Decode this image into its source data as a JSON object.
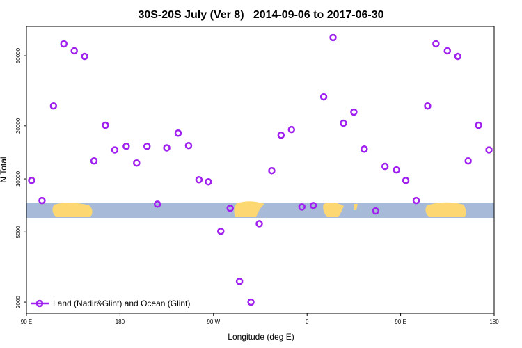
{
  "chart_data": {
    "type": "scatter",
    "title": "30S-20S July (Ver 8)   2014-09-06 to 2017-06-30",
    "x_label": "Longitude (deg E)",
    "y_label": "N Total",
    "log_y": true,
    "legend": "bottom-left",
    "xlim": [
      90,
      540
    ],
    "ylim": [
      1730,
      73300
    ],
    "xticks": [
      {
        "value": 90,
        "label": "90 E"
      },
      {
        "value": 180,
        "label": "180"
      },
      {
        "value": 270,
        "label": "90 W"
      },
      {
        "value": 360,
        "label": "0"
      },
      {
        "value": 450,
        "label": "90 E"
      },
      {
        "value": 540,
        "label": "180"
      }
    ],
    "yticks": [
      2000,
      5000,
      10000,
      20000,
      50000
    ],
    "x": [
      95,
      105,
      116,
      126,
      136,
      146,
      155,
      166,
      175,
      186,
      196,
      206,
      216,
      225,
      236,
      246,
      256,
      265,
      277,
      286,
      295,
      306,
      314,
      326,
      335,
      345,
      355,
      366,
      376,
      385,
      395,
      405,
      415,
      426,
      435,
      446,
      455,
      465,
      476,
      484,
      495,
      505,
      515,
      525,
      535
    ],
    "series": [
      {
        "name": "Land (Nadir&Glint) and Ocean (Glint)",
        "color": "#a020f0",
        "values": [
          9800,
          7540,
          25950,
          58400,
          53300,
          49550,
          12650,
          20150,
          14600,
          15300,
          12300,
          15300,
          7190,
          15000,
          18200,
          15450,
          9890,
          9630,
          5050,
          6810,
          2620,
          2000,
          5570,
          11140,
          17700,
          19050,
          6930,
          7060,
          29240,
          63400,
          20700,
          23950,
          14760,
          6580,
          11780,
          11250,
          9800,
          7540,
          25950,
          58400,
          53300,
          49550,
          12650,
          20150,
          14600
        ]
      }
    ]
  }
}
